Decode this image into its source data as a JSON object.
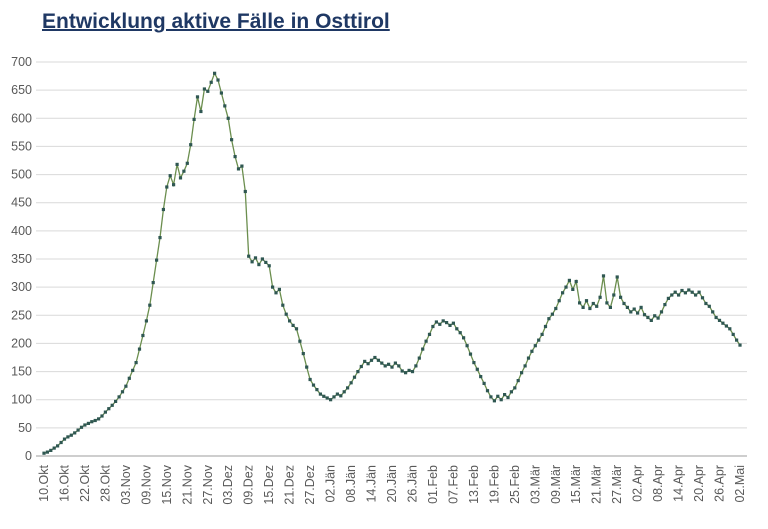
{
  "chart_data": {
    "type": "line",
    "title": "Entwicklung aktive Fälle in Osttirol",
    "xlabel": "",
    "ylabel": "",
    "ylim": [
      0,
      700
    ],
    "y_tick_step": 50,
    "grid": "horizontal",
    "legend": "none",
    "marker": "square",
    "frequency": "daily",
    "x_tick_every": 6,
    "x_tick_labels": [
      "10.Okt",
      "16.Okt",
      "22.Okt",
      "28.Okt",
      "03.Nov",
      "09.Nov",
      "15.Nov",
      "21.Nov",
      "27.Nov",
      "03.Dez",
      "09.Dez",
      "15.Dez",
      "21.Dez",
      "27.Dez",
      "02.Jän",
      "08.Jän",
      "14.Jän",
      "20.Jän",
      "26.Jän",
      "01.Feb",
      "07.Feb",
      "13.Feb",
      "19.Feb",
      "25.Feb",
      "03.Mär",
      "09.Mär",
      "15.Mär",
      "21.Mär",
      "27.Mär",
      "02.Apr",
      "08.Apr",
      "14.Apr",
      "20.Apr",
      "26.Apr",
      "02.Mai"
    ],
    "values": [
      5,
      7,
      10,
      14,
      18,
      24,
      30,
      34,
      37,
      41,
      46,
      51,
      55,
      58,
      61,
      63,
      66,
      71,
      78,
      84,
      90,
      97,
      105,
      114,
      124,
      138,
      152,
      166,
      190,
      214,
      240,
      268,
      308,
      348,
      388,
      438,
      478,
      498,
      482,
      518,
      494,
      506,
      520,
      553,
      598,
      638,
      612,
      652,
      648,
      664,
      680,
      668,
      645,
      622,
      600,
      562,
      532,
      510,
      515,
      470,
      355,
      345,
      352,
      340,
      350,
      344,
      338,
      300,
      290,
      296,
      268,
      252,
      240,
      232,
      226,
      204,
      182,
      158,
      136,
      126,
      118,
      110,
      106,
      103,
      100,
      105,
      110,
      107,
      114,
      121,
      130,
      140,
      150,
      159,
      168,
      164,
      170,
      175,
      170,
      165,
      160,
      163,
      158,
      165,
      160,
      151,
      148,
      152,
      150,
      160,
      174,
      190,
      204,
      216,
      230,
      238,
      234,
      240,
      237,
      232,
      236,
      226,
      219,
      210,
      196,
      181,
      166,
      154,
      141,
      129,
      116,
      105,
      98,
      106,
      100,
      109,
      104,
      114,
      121,
      134,
      148,
      160,
      174,
      186,
      196,
      206,
      216,
      230,
      244,
      252,
      262,
      276,
      290,
      300,
      312,
      296,
      310,
      272,
      264,
      276,
      262,
      271,
      266,
      282,
      320,
      272,
      264,
      286,
      318,
      282,
      271,
      264,
      256,
      261,
      254,
      264,
      251,
      246,
      241,
      249,
      245,
      256,
      269,
      280,
      286,
      291,
      286,
      294,
      290,
      295,
      291,
      286,
      291,
      281,
      271,
      266,
      256,
      246,
      241,
      236,
      231,
      226,
      216,
      206,
      197
    ],
    "colors": {
      "title": "#1f3864",
      "line": "#6b8e4e",
      "marker": "#2f5752",
      "grid": "#d9d9d9",
      "axis_line": "#9e9e9e",
      "axis_text": "#595959"
    }
  }
}
